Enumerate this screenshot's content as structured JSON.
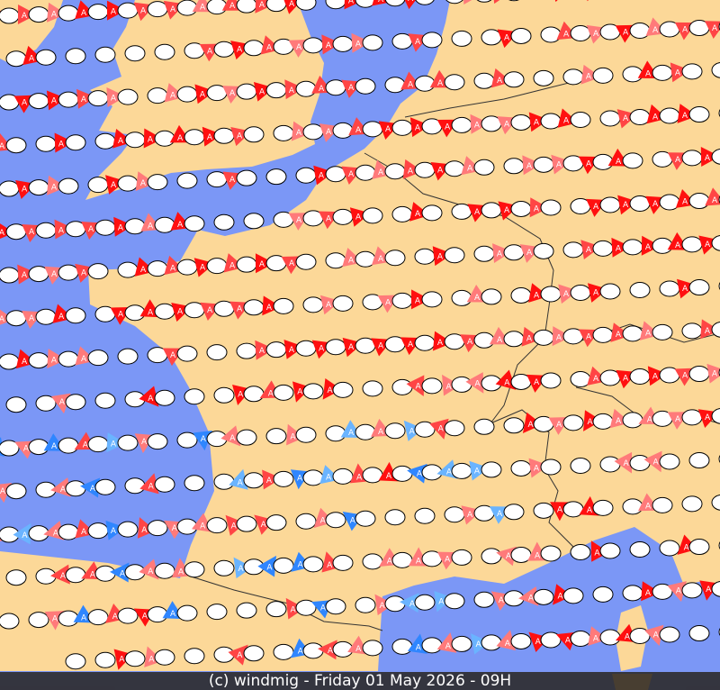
{
  "footer": {
    "caption": "(c) windmig - Friday 01 May 2026 - 09H"
  },
  "map": {
    "land_color": "#fcd898",
    "sea_color": "#7b97f6",
    "border_color": "#333333",
    "marker_label": "A",
    "marker_colors": {
      "strong_red": "#ff1010",
      "red": "#ff4545",
      "light_red": "#ff7a7a",
      "blue": "#2f86ff",
      "light_blue": "#6ab4ff"
    },
    "station_color": "#ffffff"
  }
}
